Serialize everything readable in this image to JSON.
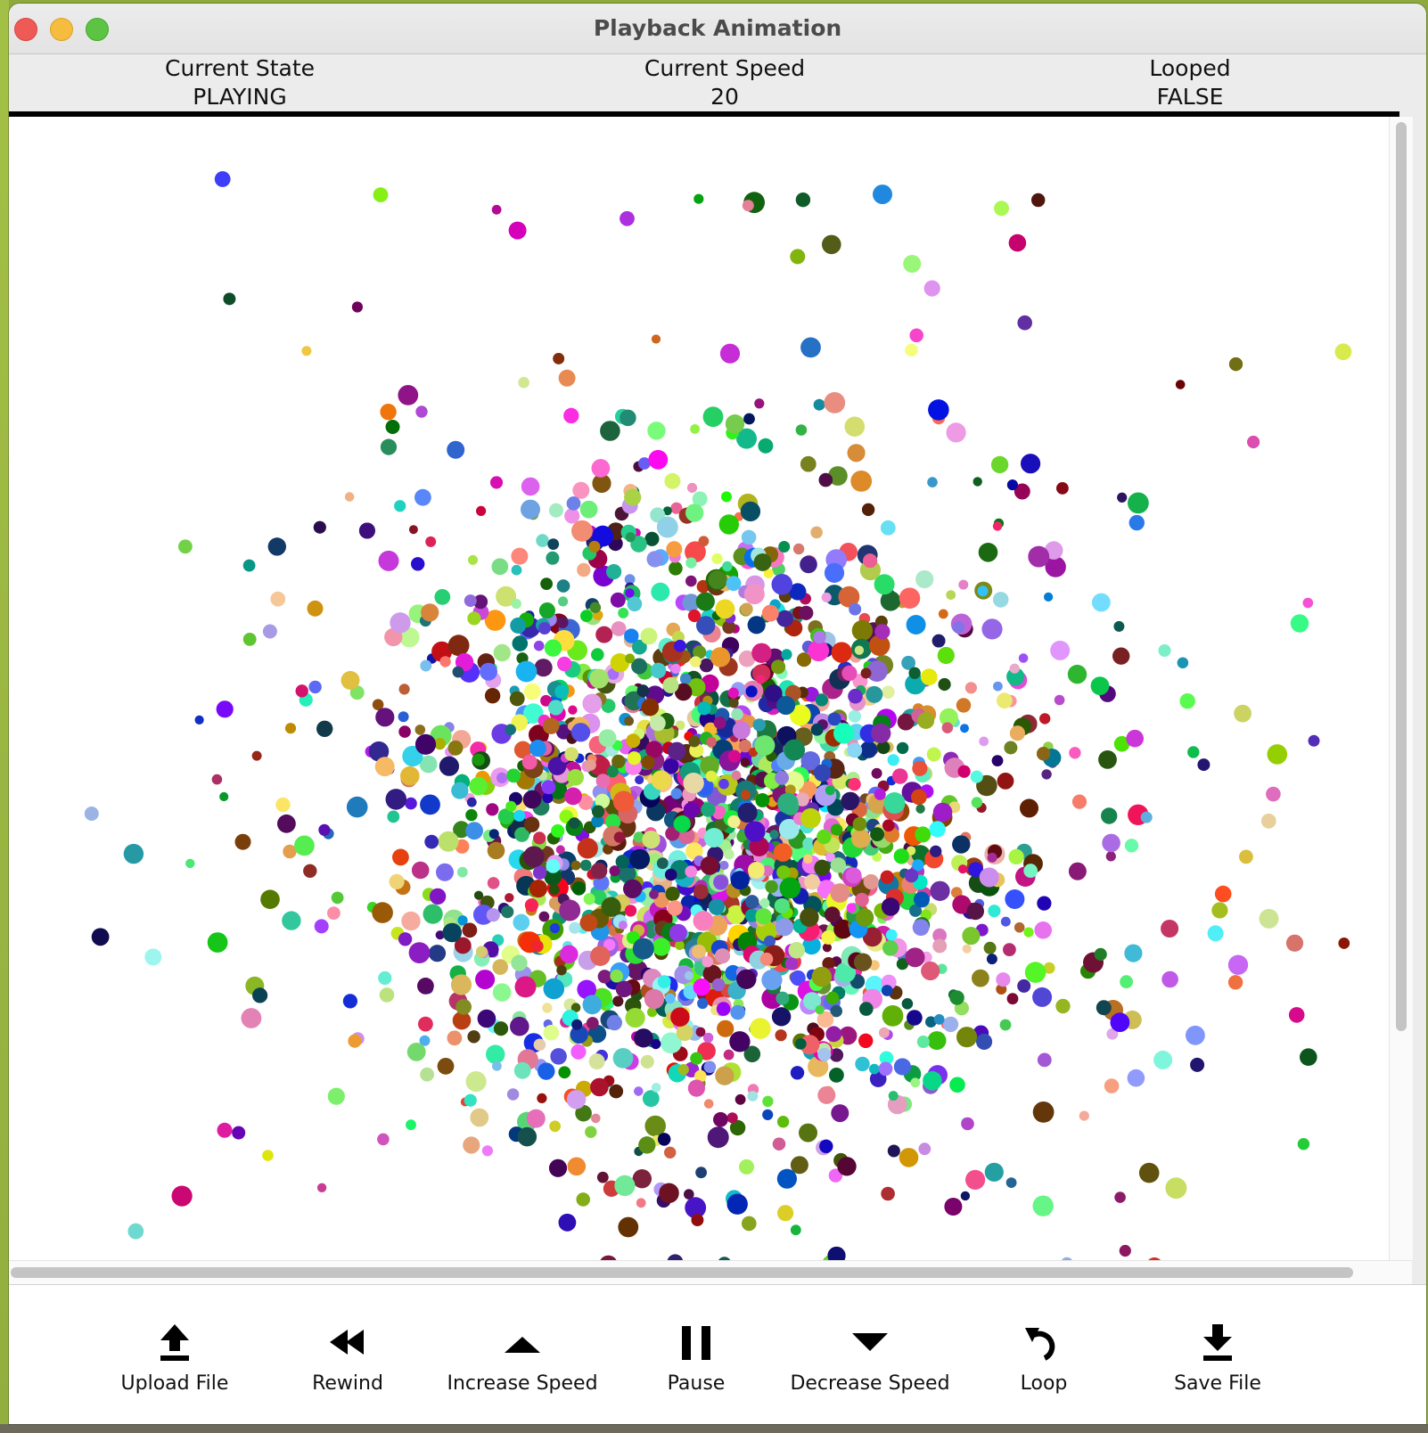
{
  "window": {
    "title": "Playback Animation"
  },
  "status": {
    "state_label": "Current State",
    "state_value": "PLAYING",
    "speed_label": "Current Speed",
    "speed_value": "20",
    "looped_label": "Looped",
    "looped_value": "FALSE"
  },
  "controls": {
    "upload": {
      "label": "Upload File",
      "icon": "upload-icon"
    },
    "rewind": {
      "label": "Rewind",
      "icon": "rewind-icon"
    },
    "increase": {
      "label": "Increase Speed",
      "icon": "triangle-up-icon"
    },
    "pause": {
      "label": "Pause",
      "icon": "pause-icon"
    },
    "decrease": {
      "label": "Decrease Speed",
      "icon": "triangle-down-icon"
    },
    "loop": {
      "label": "Loop",
      "icon": "loop-icon"
    },
    "save": {
      "label": "Save File",
      "icon": "download-icon"
    }
  },
  "colors": {
    "close": "#ee5b56",
    "minimize": "#f5bc3e",
    "maximize": "#5dc342",
    "canvas_background": "#ffffff"
  }
}
